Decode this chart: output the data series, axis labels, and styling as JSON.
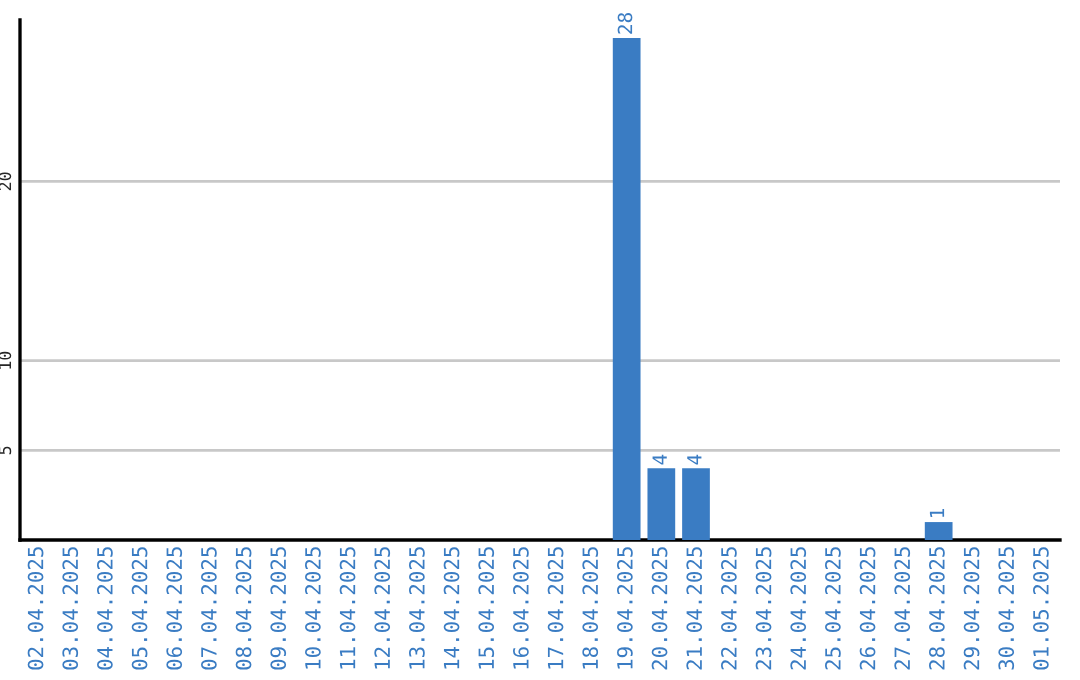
{
  "chart_data": {
    "type": "bar",
    "categories": [
      "02.04.2025",
      "03.04.2025",
      "04.04.2025",
      "05.04.2025",
      "06.04.2025",
      "07.04.2025",
      "08.04.2025",
      "09.04.2025",
      "10.04.2025",
      "11.04.2025",
      "12.04.2025",
      "13.04.2025",
      "14.04.2025",
      "15.04.2025",
      "16.04.2025",
      "17.04.2025",
      "18.04.2025",
      "19.04.2025",
      "20.04.2025",
      "21.04.2025",
      "22.04.2025",
      "23.04.2025",
      "24.04.2025",
      "25.04.2025",
      "26.04.2025",
      "27.04.2025",
      "28.04.2025",
      "29.04.2025",
      "30.04.2025",
      "01.05.2025"
    ],
    "values": [
      0,
      0,
      0,
      0,
      0,
      0,
      0,
      0,
      0,
      0,
      0,
      0,
      0,
      0,
      0,
      0,
      0,
      28,
      4,
      4,
      0,
      0,
      0,
      0,
      0,
      0,
      1,
      0,
      0,
      0
    ],
    "value_labels": [
      null,
      null,
      null,
      null,
      null,
      null,
      null,
      null,
      null,
      null,
      null,
      null,
      null,
      null,
      null,
      null,
      null,
      "28",
      "4",
      "4",
      null,
      null,
      null,
      null,
      null,
      null,
      "1",
      null,
      null,
      null
    ],
    "color": "#3a7cc3",
    "ylim": [
      0,
      29
    ],
    "yticks": [
      5,
      10,
      20
    ],
    "grid": "y",
    "legend": false
  }
}
